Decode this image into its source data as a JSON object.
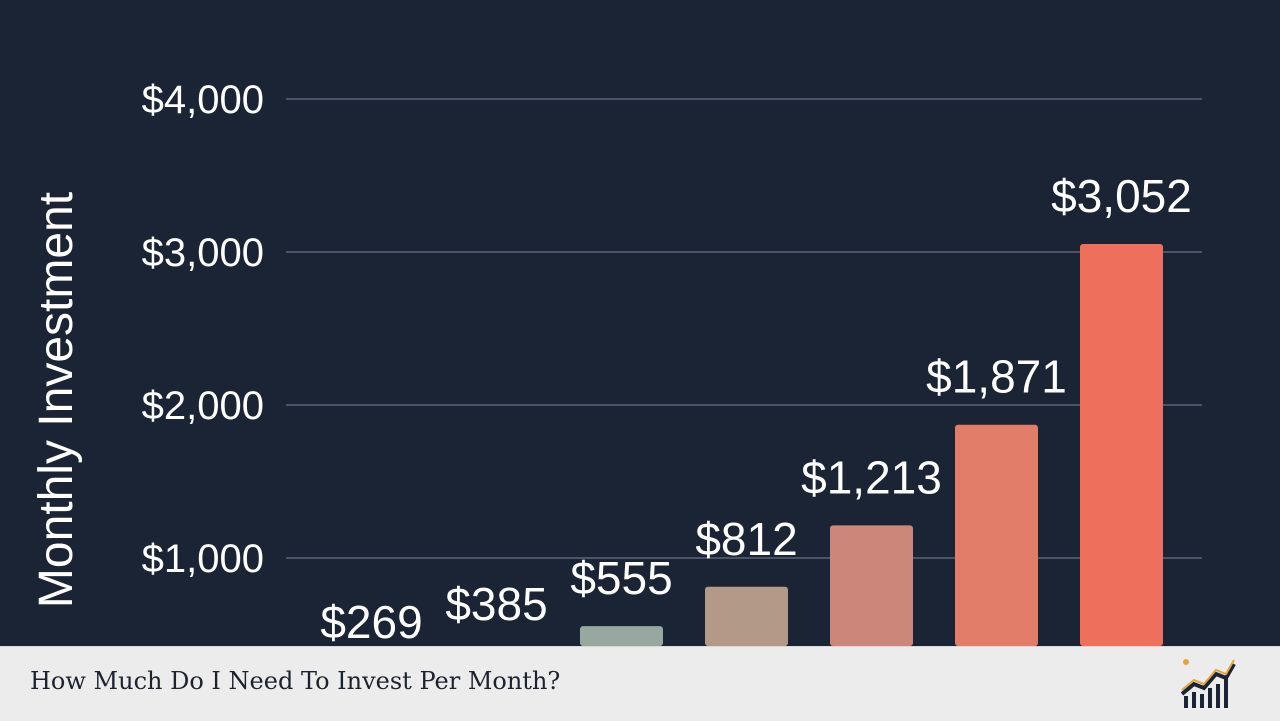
{
  "chart_data": {
    "type": "bar",
    "ylabel": "Monthly Investment",
    "yticks": [
      "$1,000",
      "$2,000",
      "$3,000",
      "$4,000"
    ],
    "ytick_values": [
      1000,
      2000,
      3000,
      4000
    ],
    "ylim": [
      0,
      4000
    ],
    "grid": true,
    "values": [
      269,
      385,
      555,
      812,
      1213,
      1871,
      3052
    ],
    "data_labels": [
      "$269",
      "$385",
      "$555",
      "$812",
      "$1,213",
      "$1,871",
      "$3,052"
    ],
    "bar_colors": [
      "#5f7f86",
      "#7f8f8a",
      "#96a8a0",
      "#b39a88",
      "#cc877a",
      "#e27d6a",
      "#ef6f5d"
    ]
  },
  "footer": {
    "title": "How Much Do I Need To Invest Per Month?",
    "logo_icon": "growth-chart-icon"
  }
}
